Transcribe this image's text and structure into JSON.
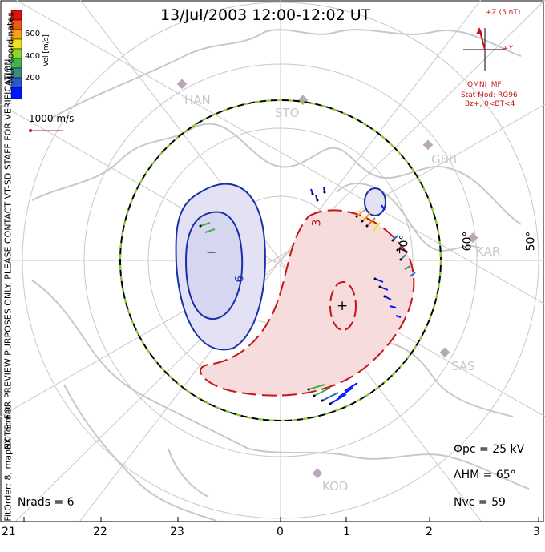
{
  "title": "13/Jul/2003 12:00-12:02 UT",
  "side_note": "NOTE: FOR PREVIEW PURPOSES ONLY. PLEASE CONTACT VT-SD STAFF FOR VERIFICATION.",
  "side_note2": "FitOrder: 8, mapEX format",
  "mlt_label": "MLT coordinates",
  "colorbar": {
    "label": "Vel [m/s]",
    "ticks": [
      "600",
      "400",
      "200"
    ],
    "colors": [
      "#0016ff",
      "#2a5cc8",
      "#3a8a8a",
      "#45b24a",
      "#8ed22a",
      "#f0e020",
      "#f8a018",
      "#f05a10",
      "#e01010"
    ]
  },
  "ref_vector": "1000 m/s",
  "imf": {
    "z_label": "+Z (5 nT)",
    "y_label": "+Y",
    "source": "OMNI IMF",
    "model_line1": "Stat Mod: RG96",
    "model_line2": "Bz+, 0<BT<4"
  },
  "stations": [
    "HAN",
    "STO",
    "GBB",
    "KAR",
    "SAS",
    "KOD"
  ],
  "lat_labels": [
    "50°",
    "60°",
    "70°"
  ],
  "contours": {
    "minus_label": "−6",
    "plus_label": "+",
    "minus_marker": "−",
    "plus_value": "3"
  },
  "stats": {
    "phi_pc": "Φpc = 25 kV",
    "lambda_hm": "ΛHM = 65°",
    "n_vc": "Nvc = 59",
    "n_rads": "Nrads = 6"
  },
  "mlt_ticks": [
    "21",
    "22",
    "23",
    "0",
    "1",
    "2",
    "3"
  ]
}
